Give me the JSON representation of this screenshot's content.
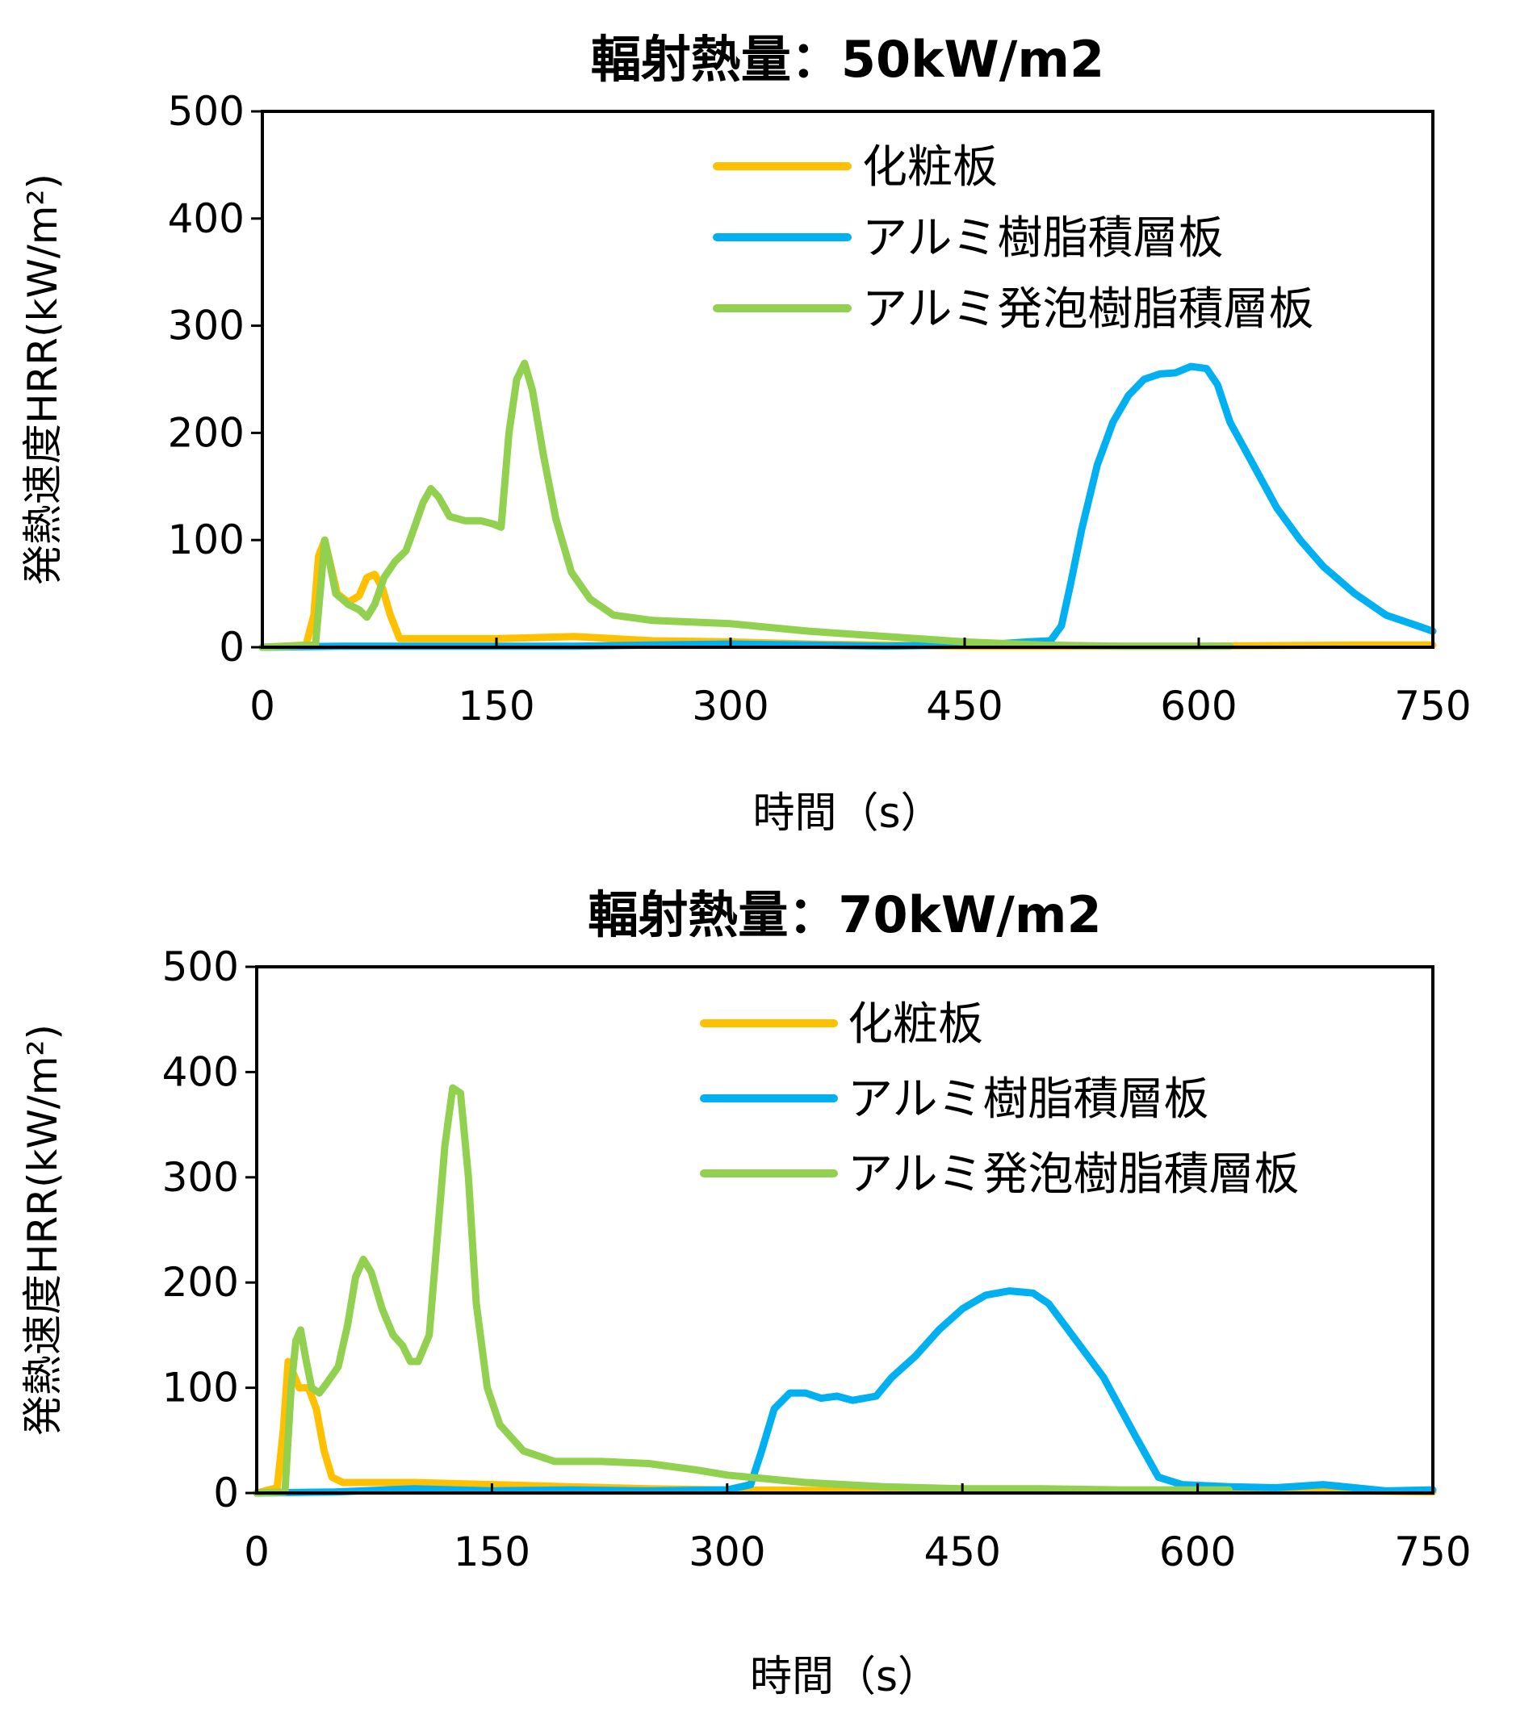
{
  "chart_data": [
    {
      "type": "line",
      "title": "輻射熱量：50kW/m2",
      "xlabel": "時間（s）",
      "ylabel": "発熱速度HRR(kW/m²)",
      "xlim": [
        0,
        750
      ],
      "ylim": [
        0,
        500
      ],
      "x_ticks": [
        0,
        150,
        300,
        450,
        600,
        750
      ],
      "y_ticks": [
        0,
        100,
        200,
        300,
        400,
        500
      ],
      "legend_position": "top-right",
      "series": [
        {
          "name": "化粧板",
          "color": "#FFC000",
          "points": [
            [
              0,
              0
            ],
            [
              28,
              2
            ],
            [
              33,
              30
            ],
            [
              36,
              85
            ],
            [
              40,
              100
            ],
            [
              44,
              75
            ],
            [
              48,
              50
            ],
            [
              55,
              42
            ],
            [
              62,
              48
            ],
            [
              67,
              65
            ],
            [
              72,
              68
            ],
            [
              77,
              55
            ],
            [
              82,
              30
            ],
            [
              88,
              8
            ],
            [
              100,
              8
            ],
            [
              150,
              8
            ],
            [
              200,
              10
            ],
            [
              250,
              6
            ],
            [
              300,
              5
            ],
            [
              350,
              3
            ],
            [
              400,
              2
            ],
            [
              450,
              1
            ],
            [
              500,
              1
            ],
            [
              600,
              1
            ],
            [
              700,
              2
            ],
            [
              750,
              2
            ]
          ]
        },
        {
          "name": "アルミ樹脂積層板",
          "color": "#00B0F0",
          "points": [
            [
              0,
              0
            ],
            [
              50,
              1
            ],
            [
              100,
              1
            ],
            [
              150,
              1
            ],
            [
              200,
              1
            ],
            [
              250,
              2
            ],
            [
              300,
              3
            ],
            [
              350,
              2
            ],
            [
              400,
              1
            ],
            [
              450,
              2
            ],
            [
              470,
              3
            ],
            [
              490,
              5
            ],
            [
              505,
              6
            ],
            [
              512,
              20
            ],
            [
              518,
              60
            ],
            [
              525,
              110
            ],
            [
              535,
              170
            ],
            [
              545,
              210
            ],
            [
              555,
              235
            ],
            [
              565,
              250
            ],
            [
              575,
              255
            ],
            [
              585,
              256
            ],
            [
              595,
              262
            ],
            [
              605,
              260
            ],
            [
              612,
              245
            ],
            [
              620,
              210
            ],
            [
              635,
              170
            ],
            [
              650,
              130
            ],
            [
              665,
              100
            ],
            [
              680,
              75
            ],
            [
              700,
              50
            ],
            [
              720,
              30
            ],
            [
              740,
              20
            ],
            [
              750,
              15
            ]
          ]
        },
        {
          "name": "アルミ発泡樹脂積層板",
          "color": "#92D050",
          "points": [
            [
              0,
              0
            ],
            [
              34,
              2
            ],
            [
              37,
              50
            ],
            [
              40,
              100
            ],
            [
              43,
              80
            ],
            [
              47,
              50
            ],
            [
              55,
              40
            ],
            [
              62,
              35
            ],
            [
              67,
              28
            ],
            [
              72,
              40
            ],
            [
              78,
              65
            ],
            [
              85,
              80
            ],
            [
              92,
              90
            ],
            [
              97,
              110
            ],
            [
              103,
              135
            ],
            [
              108,
              148
            ],
            [
              113,
              140
            ],
            [
              120,
              122
            ],
            [
              130,
              118
            ],
            [
              140,
              118
            ],
            [
              148,
              115
            ],
            [
              153,
              112
            ],
            [
              158,
              200
            ],
            [
              163,
              250
            ],
            [
              168,
              265
            ],
            [
              173,
              240
            ],
            [
              180,
              180
            ],
            [
              188,
              120
            ],
            [
              198,
              70
            ],
            [
              210,
              45
            ],
            [
              225,
              30
            ],
            [
              250,
              25
            ],
            [
              300,
              22
            ],
            [
              350,
              15
            ],
            [
              400,
              10
            ],
            [
              450,
              5
            ],
            [
              500,
              2
            ],
            [
              550,
              1
            ],
            [
              600,
              1
            ],
            [
              620,
              1
            ]
          ]
        }
      ]
    },
    {
      "type": "line",
      "title": "輻射熱量：70kW/m2",
      "xlabel": "時間（s）",
      "ylabel": "発熱速度HRR(kW/m²)",
      "xlim": [
        0,
        750
      ],
      "ylim": [
        0,
        500
      ],
      "x_ticks": [
        0,
        150,
        300,
        450,
        600,
        750
      ],
      "y_ticks": [
        0,
        100,
        200,
        300,
        400,
        500
      ],
      "legend_position": "top-right",
      "series": [
        {
          "name": "化粧板",
          "color": "#FFC000",
          "points": [
            [
              0,
              0
            ],
            [
              13,
              5
            ],
            [
              17,
              60
            ],
            [
              20,
              125
            ],
            [
              23,
              115
            ],
            [
              27,
              100
            ],
            [
              33,
              100
            ],
            [
              38,
              80
            ],
            [
              43,
              40
            ],
            [
              48,
              15
            ],
            [
              55,
              10
            ],
            [
              70,
              10
            ],
            [
              100,
              10
            ],
            [
              150,
              8
            ],
            [
              200,
              6
            ],
            [
              250,
              4
            ],
            [
              300,
              3
            ],
            [
              400,
              2
            ],
            [
              500,
              2
            ],
            [
              600,
              2
            ],
            [
              700,
              2
            ],
            [
              750,
              1
            ]
          ]
        },
        {
          "name": "アルミ樹脂積層板",
          "color": "#00B0F0",
          "points": [
            [
              0,
              0
            ],
            [
              50,
              1
            ],
            [
              100,
              4
            ],
            [
              150,
              2
            ],
            [
              200,
              3
            ],
            [
              250,
              2
            ],
            [
              300,
              3
            ],
            [
              315,
              8
            ],
            [
              322,
              40
            ],
            [
              330,
              80
            ],
            [
              340,
              95
            ],
            [
              350,
              95
            ],
            [
              360,
              90
            ],
            [
              370,
              92
            ],
            [
              380,
              88
            ],
            [
              395,
              92
            ],
            [
              405,
              110
            ],
            [
              420,
              130
            ],
            [
              435,
              155
            ],
            [
              450,
              175
            ],
            [
              465,
              188
            ],
            [
              480,
              192
            ],
            [
              495,
              190
            ],
            [
              505,
              180
            ],
            [
              520,
              150
            ],
            [
              540,
              110
            ],
            [
              560,
              55
            ],
            [
              575,
              15
            ],
            [
              590,
              8
            ],
            [
              620,
              6
            ],
            [
              650,
              5
            ],
            [
              680,
              8
            ],
            [
              700,
              5
            ],
            [
              720,
              2
            ],
            [
              750,
              3
            ]
          ]
        },
        {
          "name": "アルミ発泡樹脂積層板",
          "color": "#92D050",
          "points": [
            [
              0,
              0
            ],
            [
              18,
              1
            ],
            [
              22,
              100
            ],
            [
              25,
              145
            ],
            [
              28,
              155
            ],
            [
              31,
              130
            ],
            [
              35,
              100
            ],
            [
              40,
              95
            ],
            [
              45,
              105
            ],
            [
              52,
              120
            ],
            [
              58,
              160
            ],
            [
              63,
              205
            ],
            [
              68,
              222
            ],
            [
              73,
              210
            ],
            [
              80,
              175
            ],
            [
              87,
              150
            ],
            [
              93,
              140
            ],
            [
              98,
              125
            ],
            [
              103,
              125
            ],
            [
              110,
              150
            ],
            [
              115,
              240
            ],
            [
              120,
              330
            ],
            [
              125,
              385
            ],
            [
              130,
              380
            ],
            [
              135,
              300
            ],
            [
              140,
              180
            ],
            [
              147,
              100
            ],
            [
              155,
              65
            ],
            [
              170,
              40
            ],
            [
              190,
              30
            ],
            [
              220,
              30
            ],
            [
              250,
              28
            ],
            [
              280,
              22
            ],
            [
              300,
              17
            ],
            [
              350,
              10
            ],
            [
              400,
              6
            ],
            [
              450,
              4
            ],
            [
              500,
              4
            ],
            [
              550,
              3
            ],
            [
              600,
              3
            ],
            [
              620,
              3
            ]
          ]
        }
      ]
    }
  ]
}
